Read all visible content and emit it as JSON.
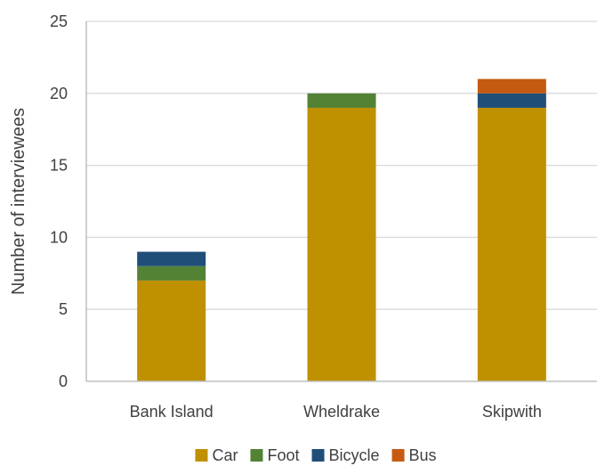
{
  "chart_data": {
    "type": "bar",
    "stacked": true,
    "title": "",
    "xlabel": "",
    "ylabel": "Number of interviewees",
    "categories": [
      "Bank Island",
      "Wheldrake",
      "Skipwith"
    ],
    "series": [
      {
        "name": "Car",
        "color": "#BF9000",
        "values": [
          7,
          19,
          19
        ]
      },
      {
        "name": "Foot",
        "color": "#548235",
        "values": [
          1,
          1,
          0
        ]
      },
      {
        "name": "Bicycle",
        "color": "#1F4E79",
        "values": [
          1,
          0,
          1
        ]
      },
      {
        "name": "Bus",
        "color": "#C55A11",
        "values": [
          0,
          0,
          1
        ]
      }
    ],
    "ylim": [
      0,
      25
    ],
    "yticks": [
      0,
      5,
      10,
      15,
      20,
      25
    ],
    "grid": true,
    "legend_position": "bottom-center"
  }
}
